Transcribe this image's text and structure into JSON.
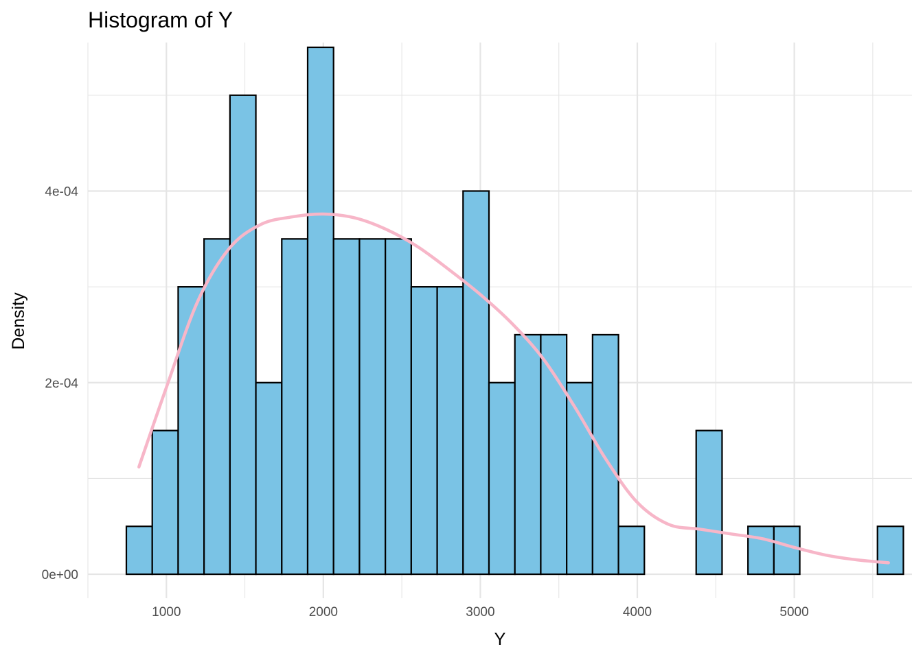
{
  "chart_data": {
    "type": "bar",
    "title": "Histogram of Y",
    "xlabel": "Y",
    "ylabel": "Density",
    "x_ticks": [
      1000,
      2000,
      3000,
      4000,
      5000
    ],
    "y_ticks": [
      0,
      0.0002,
      0.0004
    ],
    "y_tick_labels": [
      "0e+00",
      "2e-04",
      "4e-04"
    ],
    "xlim": [
      500,
      5750
    ],
    "ylim": [
      -2.5e-05,
      0.000555
    ],
    "bin_width": 165,
    "bin_start": 745,
    "values": [
      5e-05,
      0.00015,
      0.0003,
      0.00035,
      0.0005,
      0.0002,
      0.00035,
      0.00055,
      0.00035,
      0.00035,
      0.00035,
      0.0003,
      0.0003,
      0.0004,
      0.0002,
      0.00025,
      0.00025,
      0.0002,
      0.00025,
      5e-05,
      0,
      0,
      0.00015,
      0,
      5e-05,
      5e-05,
      0,
      0,
      0,
      5e-05
    ],
    "density_curve": {
      "x": [
        825,
        1000,
        1200,
        1400,
        1600,
        1800,
        2000,
        2200,
        2400,
        2600,
        2800,
        3000,
        3200,
        3400,
        3600,
        3800,
        4000,
        4200,
        4400,
        4600,
        4800,
        5000,
        5200,
        5400,
        5600
      ],
      "y": [
        0.000112,
        0.000195,
        0.000285,
        0.00034,
        0.000365,
        0.000373,
        0.000376,
        0.000372,
        0.00036,
        0.000342,
        0.000318,
        0.000292,
        0.000262,
        0.000225,
        0.000175,
        0.00012,
        7.5e-05,
        5.2e-05,
        4.7e-05,
        4.2e-05,
        3.7e-05,
        2.8e-05,
        2e-05,
        1.5e-05,
        1.2e-05
      ]
    },
    "grid": true,
    "legend": "none",
    "colors": {
      "bar_fill": "#7AC3E5",
      "bar_stroke": "#000000",
      "density_line": "#F7B6C8",
      "grid": "#E5E5E5",
      "tick_text": "#4D4D4D"
    }
  }
}
